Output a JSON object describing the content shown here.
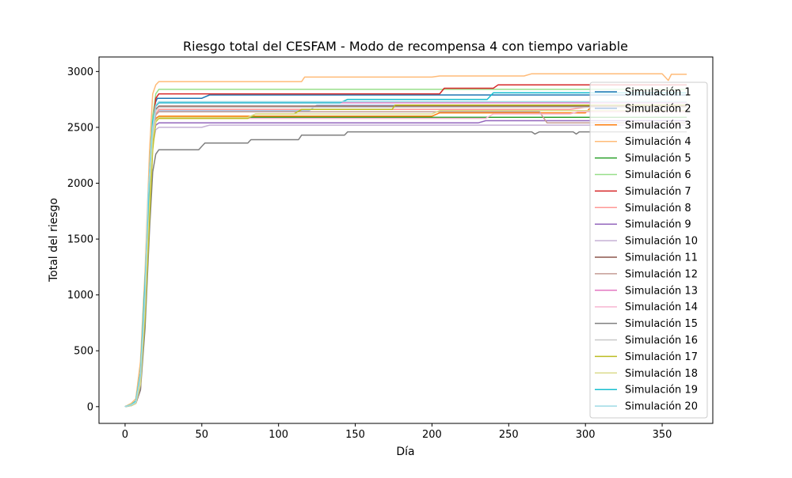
{
  "chart_data": {
    "type": "line",
    "title": "Riesgo total del CESFAM - Modo de recompensa 4 con tiempo variable",
    "xlabel": "Día",
    "ylabel": "Total del riesgo",
    "xlim": [
      -17,
      383
    ],
    "ylim": [
      -150,
      3130
    ],
    "xticks": [
      0,
      50,
      100,
      150,
      200,
      250,
      300,
      350
    ],
    "yticks": [
      0,
      500,
      1000,
      1500,
      2000,
      2500,
      3000
    ],
    "grid": false,
    "legend_position": "right",
    "series": [
      {
        "name": "Simulación 1",
        "color": "#1f77b4",
        "values": [
          [
            0,
            0
          ],
          [
            4,
            10
          ],
          [
            7,
            30
          ],
          [
            9,
            120
          ],
          [
            12,
            700
          ],
          [
            15,
            1700
          ],
          [
            17,
            2300
          ],
          [
            19,
            2700
          ],
          [
            21,
            2760
          ],
          [
            50,
            2760
          ],
          [
            55,
            2790
          ],
          [
            366,
            2790
          ]
        ]
      },
      {
        "name": "Simulación 2",
        "color": "#aec7e8",
        "values": [
          [
            0,
            0
          ],
          [
            4,
            20
          ],
          [
            7,
            40
          ],
          [
            10,
            300
          ],
          [
            13,
            900
          ],
          [
            16,
            1900
          ],
          [
            18,
            2450
          ],
          [
            20,
            2620
          ],
          [
            22,
            2650
          ],
          [
            120,
            2650
          ],
          [
            125,
            2700
          ],
          [
            366,
            2700
          ]
        ]
      },
      {
        "name": "Simulación 3",
        "color": "#ff7f0e",
        "values": [
          [
            0,
            0
          ],
          [
            4,
            15
          ],
          [
            7,
            40
          ],
          [
            10,
            250
          ],
          [
            13,
            1000
          ],
          [
            16,
            2000
          ],
          [
            18,
            2500
          ],
          [
            20,
            2580
          ],
          [
            22,
            2600
          ],
          [
            200,
            2600
          ],
          [
            205,
            2630
          ],
          [
            300,
            2630
          ],
          [
            305,
            2700
          ],
          [
            366,
            2700
          ]
        ]
      },
      {
        "name": "Simulación 4",
        "color": "#ffbb78",
        "values": [
          [
            0,
            0
          ],
          [
            4,
            30
          ],
          [
            7,
            70
          ],
          [
            10,
            400
          ],
          [
            13,
            1200
          ],
          [
            16,
            2300
          ],
          [
            18,
            2800
          ],
          [
            20,
            2880
          ],
          [
            22,
            2910
          ],
          [
            115,
            2910
          ],
          [
            117,
            2950
          ],
          [
            200,
            2950
          ],
          [
            205,
            2960
          ],
          [
            260,
            2960
          ],
          [
            265,
            2980
          ],
          [
            350,
            2980
          ],
          [
            354,
            2920
          ],
          [
            356,
            2975
          ],
          [
            366,
            2975
          ]
        ]
      },
      {
        "name": "Simulación 5",
        "color": "#2ca02c",
        "values": [
          [
            0,
            0
          ],
          [
            4,
            10
          ],
          [
            7,
            30
          ],
          [
            10,
            200
          ],
          [
            13,
            900
          ],
          [
            16,
            1900
          ],
          [
            18,
            2400
          ],
          [
            20,
            2560
          ],
          [
            22,
            2590
          ],
          [
            366,
            2590
          ]
        ]
      },
      {
        "name": "Simulación 6",
        "color": "#98df8a",
        "values": [
          [
            0,
            0
          ],
          [
            4,
            20
          ],
          [
            7,
            50
          ],
          [
            10,
            300
          ],
          [
            13,
            1100
          ],
          [
            16,
            2100
          ],
          [
            18,
            2600
          ],
          [
            20,
            2800
          ],
          [
            22,
            2840
          ],
          [
            366,
            2840
          ]
        ]
      },
      {
        "name": "Simulación 7",
        "color": "#d62728",
        "values": [
          [
            0,
            0
          ],
          [
            4,
            10
          ],
          [
            7,
            30
          ],
          [
            10,
            150
          ],
          [
            13,
            900
          ],
          [
            16,
            1900
          ],
          [
            18,
            2500
          ],
          [
            20,
            2760
          ],
          [
            22,
            2800
          ],
          [
            205,
            2800
          ],
          [
            208,
            2850
          ],
          [
            240,
            2850
          ],
          [
            243,
            2880
          ],
          [
            366,
            2880
          ]
        ]
      },
      {
        "name": "Simulación 8",
        "color": "#ff9896",
        "values": [
          [
            0,
            0
          ],
          [
            4,
            10
          ],
          [
            7,
            40
          ],
          [
            10,
            250
          ],
          [
            13,
            1000
          ],
          [
            16,
            2000
          ],
          [
            18,
            2450
          ],
          [
            20,
            2620
          ],
          [
            22,
            2660
          ],
          [
            290,
            2660
          ],
          [
            300,
            2680
          ],
          [
            310,
            2690
          ],
          [
            366,
            2690
          ]
        ]
      },
      {
        "name": "Simulación 9",
        "color": "#9467bd",
        "values": [
          [
            0,
            0
          ],
          [
            4,
            15
          ],
          [
            7,
            40
          ],
          [
            10,
            220
          ],
          [
            13,
            950
          ],
          [
            16,
            1950
          ],
          [
            18,
            2400
          ],
          [
            20,
            2520
          ],
          [
            22,
            2540
          ],
          [
            230,
            2540
          ],
          [
            235,
            2560
          ],
          [
            366,
            2560
          ]
        ]
      },
      {
        "name": "Simulación 10",
        "color": "#c5b0d5",
        "values": [
          [
            0,
            0
          ],
          [
            4,
            15
          ],
          [
            7,
            40
          ],
          [
            10,
            220
          ],
          [
            13,
            950
          ],
          [
            16,
            1950
          ],
          [
            18,
            2350
          ],
          [
            20,
            2480
          ],
          [
            22,
            2500
          ],
          [
            50,
            2500
          ],
          [
            55,
            2520
          ],
          [
            366,
            2520
          ]
        ]
      },
      {
        "name": "Simulación 11",
        "color": "#8c564b",
        "values": [
          [
            0,
            0
          ],
          [
            4,
            10
          ],
          [
            7,
            30
          ],
          [
            10,
            200
          ],
          [
            13,
            950
          ],
          [
            16,
            1950
          ],
          [
            18,
            2450
          ],
          [
            20,
            2660
          ],
          [
            22,
            2690
          ],
          [
            366,
            2690
          ]
        ]
      },
      {
        "name": "Simulación 12",
        "color": "#c49c94",
        "values": [
          [
            0,
            0
          ],
          [
            4,
            10
          ],
          [
            7,
            30
          ],
          [
            10,
            200
          ],
          [
            13,
            900
          ],
          [
            16,
            1900
          ],
          [
            18,
            2400
          ],
          [
            20,
            2610
          ],
          [
            22,
            2640
          ],
          [
            270,
            2640
          ],
          [
            275,
            2540
          ],
          [
            366,
            2540
          ]
        ]
      },
      {
        "name": "Simulación 13",
        "color": "#e377c2",
        "values": [
          [
            0,
            0
          ],
          [
            4,
            10
          ],
          [
            7,
            30
          ],
          [
            10,
            200
          ],
          [
            13,
            1000
          ],
          [
            16,
            2000
          ],
          [
            18,
            2500
          ],
          [
            20,
            2690
          ],
          [
            22,
            2720
          ],
          [
            366,
            2720
          ]
        ]
      },
      {
        "name": "Simulación 14",
        "color": "#f7b6d2",
        "values": [
          [
            0,
            0
          ],
          [
            4,
            10
          ],
          [
            7,
            30
          ],
          [
            10,
            200
          ],
          [
            13,
            900
          ],
          [
            16,
            1900
          ],
          [
            18,
            2400
          ],
          [
            20,
            2560
          ],
          [
            22,
            2580
          ],
          [
            235,
            2580
          ],
          [
            240,
            2620
          ],
          [
            290,
            2620
          ],
          [
            295,
            2640
          ],
          [
            366,
            2640
          ]
        ]
      },
      {
        "name": "Simulación 15",
        "color": "#7f7f7f",
        "values": [
          [
            0,
            0
          ],
          [
            4,
            10
          ],
          [
            7,
            30
          ],
          [
            10,
            150
          ],
          [
            13,
            700
          ],
          [
            16,
            1600
          ],
          [
            18,
            2100
          ],
          [
            20,
            2260
          ],
          [
            22,
            2300
          ],
          [
            48,
            2300
          ],
          [
            52,
            2360
          ],
          [
            80,
            2360
          ],
          [
            82,
            2390
          ],
          [
            113,
            2390
          ],
          [
            115,
            2430
          ],
          [
            143,
            2430
          ],
          [
            145,
            2460
          ],
          [
            265,
            2460
          ],
          [
            267,
            2440
          ],
          [
            270,
            2460
          ],
          [
            292,
            2460
          ],
          [
            294,
            2440
          ],
          [
            296,
            2460
          ],
          [
            366,
            2460
          ]
        ]
      },
      {
        "name": "Simulación 16",
        "color": "#c7c7c7",
        "values": [
          [
            0,
            0
          ],
          [
            4,
            10
          ],
          [
            7,
            30
          ],
          [
            10,
            200
          ],
          [
            13,
            950
          ],
          [
            16,
            1950
          ],
          [
            18,
            2450
          ],
          [
            20,
            2650
          ],
          [
            22,
            2680
          ],
          [
            366,
            2680
          ]
        ]
      },
      {
        "name": "Simulación 17",
        "color": "#bcbd22",
        "values": [
          [
            0,
            0
          ],
          [
            4,
            10
          ],
          [
            7,
            30
          ],
          [
            10,
            200
          ],
          [
            13,
            800
          ],
          [
            16,
            1700
          ],
          [
            18,
            2300
          ],
          [
            20,
            2550
          ],
          [
            22,
            2580
          ],
          [
            80,
            2580
          ],
          [
            85,
            2620
          ],
          [
            110,
            2620
          ],
          [
            115,
            2660
          ],
          [
            174,
            2660
          ],
          [
            176,
            2700
          ],
          [
            366,
            2700
          ]
        ]
      },
      {
        "name": "Simulación 18",
        "color": "#dbdb8d",
        "values": [
          [
            0,
            0
          ],
          [
            4,
            10
          ],
          [
            7,
            30
          ],
          [
            10,
            200
          ],
          [
            13,
            900
          ],
          [
            16,
            1900
          ],
          [
            18,
            2400
          ],
          [
            20,
            2560
          ],
          [
            22,
            2590
          ],
          [
            80,
            2590
          ],
          [
            85,
            2620
          ],
          [
            200,
            2620
          ],
          [
            205,
            2650
          ],
          [
            366,
            2650
          ]
        ]
      },
      {
        "name": "Simulación 19",
        "color": "#17becf",
        "values": [
          [
            0,
            0
          ],
          [
            4,
            15
          ],
          [
            7,
            50
          ],
          [
            10,
            300
          ],
          [
            13,
            1100
          ],
          [
            16,
            2100
          ],
          [
            18,
            2550
          ],
          [
            20,
            2690
          ],
          [
            22,
            2720
          ],
          [
            140,
            2720
          ],
          [
            145,
            2750
          ],
          [
            236,
            2750
          ],
          [
            240,
            2810
          ],
          [
            366,
            2810
          ]
        ]
      },
      {
        "name": "Simulación 20",
        "color": "#9edae5",
        "values": [
          [
            0,
            0
          ],
          [
            4,
            15
          ],
          [
            7,
            40
          ],
          [
            10,
            280
          ],
          [
            13,
            1000
          ],
          [
            15,
            1900
          ],
          [
            18,
            2500
          ],
          [
            20,
            2700
          ],
          [
            22,
            2730
          ],
          [
            366,
            2730
          ]
        ]
      }
    ]
  }
}
